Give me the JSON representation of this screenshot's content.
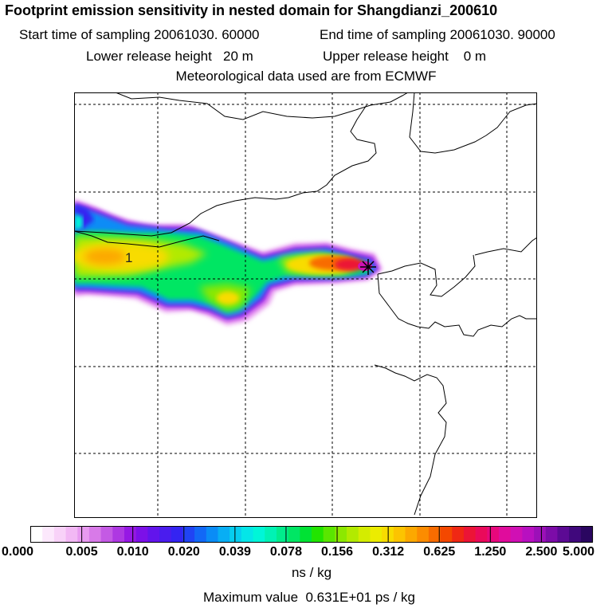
{
  "header": {
    "title": "Footprint emission sensitivity in nested domain for Shangdianzi_200610",
    "start_label": "Start time of sampling 20061030. 60000",
    "end_label": "End time of sampling 20061030. 90000",
    "lower_label": "Lower release height   20 m",
    "upper_label": "Upper release height    0 m",
    "met_label": "Meteorological data used are from ECMWF"
  },
  "chart_data": {
    "type": "heatmap",
    "title": "Footprint emission sensitivity in nested domain for Shangdianzi_200610",
    "xlabel": "",
    "ylabel": "",
    "grid": true,
    "grid_lines": {
      "vertical": 5,
      "horizontal": 5
    },
    "receptor_marker": "star",
    "plume_label": "1",
    "colorbar": {
      "unit": "ns / kg",
      "tick_labels": [
        "0.000",
        "0.005",
        "0.010",
        "0.020",
        "0.039",
        "0.078",
        "0.156",
        "0.312",
        "0.625",
        "1.250",
        "2.500",
        "5.000"
      ],
      "colors": [
        "#ffffff",
        "#fce8fc",
        "#f8d2f8",
        "#f2b8f4",
        "#e89af0",
        "#d87ae8",
        "#c45ae4",
        "#ae38e2",
        "#9618e4",
        "#7c10e8",
        "#6214ec",
        "#4a1cee",
        "#3424f2",
        "#2044f4",
        "#1268f6",
        "#0a8cf6",
        "#08aef4",
        "#06cef0",
        "#04e6e8",
        "#00f6d8",
        "#00f2b4",
        "#00ec8c",
        "#00e664",
        "#00e234",
        "#22e400",
        "#5ae600",
        "#8ce800",
        "#b2ea00",
        "#d4ec00",
        "#ecec00",
        "#f8dc00",
        "#fcc400",
        "#fca800",
        "#fc8c00",
        "#f86c00",
        "#f44800",
        "#f02814",
        "#ec1436",
        "#ea0a5a",
        "#e8087c",
        "#e00c9c",
        "#d010b4",
        "#b810c0",
        "#9c10b8",
        "#7c0ca8",
        "#5c0a94",
        "#40087c",
        "#2a0660"
      ]
    },
    "max_value": "Maximum value  0.631E+01 ps / kg"
  }
}
